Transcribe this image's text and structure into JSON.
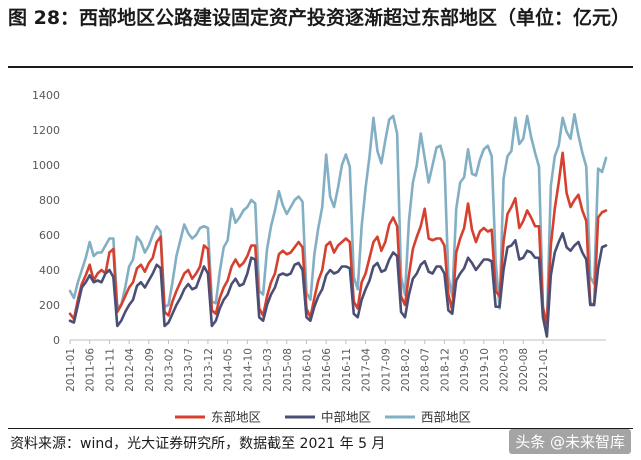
{
  "figure": {
    "title": "图 28：西部地区公路建设固定资产投资逐渐超过东部地区（单位：亿元）",
    "source": "资料来源：wind，光大证券研究所，数据截至 2021 年 5 月",
    "watermark": "头条 @未来智库"
  },
  "chart_data": {
    "type": "line",
    "title": "",
    "xlabel": "",
    "ylabel": "",
    "ylim": [
      0,
      1400
    ],
    "yticks": [
      0,
      200,
      400,
      600,
      800,
      1000,
      1200,
      1400
    ],
    "grid": false,
    "legend_position": "bottom",
    "x_start": "2011-01",
    "x_end": "2021-05",
    "x_tick_labels": [
      "2011-01",
      "2011-06",
      "2011-11",
      "2012-04",
      "2012-09",
      "2013-02",
      "2013-07",
      "2013-12",
      "2014-05",
      "2014-10",
      "2015-03",
      "2015-08",
      "2016-01",
      "2016-06",
      "2016-11",
      "2017-04",
      "2017-09",
      "2018-02",
      "2018-07",
      "2018-12",
      "2019-05",
      "2019-10",
      "2020-03",
      "2020-08",
      "2021-01"
    ],
    "series": [
      {
        "name": "东部地区",
        "color": "#d6402f",
        "values": [
          150,
          120,
          230,
          320,
          370,
          430,
          340,
          380,
          400,
          380,
          500,
          520,
          160,
          200,
          250,
          300,
          330,
          410,
          430,
          390,
          440,
          470,
          560,
          590,
          160,
          140,
          220,
          280,
          330,
          380,
          400,
          350,
          380,
          420,
          540,
          520,
          170,
          150,
          240,
          300,
          340,
          420,
          460,
          420,
          440,
          480,
          540,
          540,
          180,
          140,
          250,
          330,
          380,
          490,
          510,
          490,
          500,
          530,
          560,
          530,
          180,
          130,
          240,
          340,
          400,
          540,
          560,
          500,
          540,
          560,
          580,
          560,
          220,
          180,
          330,
          380,
          470,
          560,
          590,
          510,
          560,
          660,
          700,
          650,
          250,
          200,
          370,
          520,
          590,
          650,
          750,
          580,
          570,
          580,
          580,
          540,
          260,
          170,
          500,
          580,
          640,
          780,
          630,
          560,
          620,
          640,
          620,
          630,
          280,
          250,
          560,
          720,
          760,
          810,
          640,
          680,
          740,
          700,
          650,
          650,
          180,
          90,
          540,
          750,
          900,
          1070,
          840,
          760,
          800,
          830,
          740,
          680,
          210,
          200,
          700,
          730,
          740
        ]
      },
      {
        "name": "中部地区",
        "color": "#4b4f76",
        "values": [
          110,
          100,
          200,
          300,
          330,
          370,
          330,
          340,
          330,
          380,
          400,
          360,
          80,
          110,
          160,
          200,
          230,
          310,
          330,
          300,
          340,
          380,
          430,
          410,
          80,
          100,
          150,
          200,
          240,
          290,
          320,
          290,
          300,
          360,
          420,
          380,
          80,
          110,
          180,
          230,
          260,
          320,
          350,
          310,
          320,
          380,
          470,
          460,
          130,
          110,
          200,
          260,
          300,
          370,
          380,
          370,
          380,
          430,
          440,
          400,
          130,
          110,
          190,
          250,
          290,
          370,
          400,
          380,
          390,
          420,
          420,
          410,
          150,
          130,
          230,
          290,
          340,
          420,
          440,
          390,
          400,
          460,
          500,
          480,
          160,
          130,
          260,
          350,
          380,
          430,
          450,
          390,
          380,
          420,
          420,
          380,
          170,
          150,
          340,
          380,
          410,
          470,
          440,
          400,
          430,
          460,
          460,
          450,
          190,
          190,
          400,
          530,
          540,
          570,
          460,
          470,
          510,
          500,
          470,
          470,
          130,
          20,
          370,
          500,
          560,
          610,
          530,
          510,
          540,
          560,
          500,
          460,
          200,
          200,
          410,
          530,
          540
        ]
      },
      {
        "name": "西部地区",
        "color": "#82afc4",
        "values": [
          280,
          240,
          330,
          400,
          470,
          560,
          480,
          500,
          500,
          540,
          580,
          580,
          190,
          200,
          300,
          420,
          460,
          590,
          560,
          500,
          540,
          600,
          650,
          620,
          190,
          200,
          330,
          480,
          570,
          660,
          610,
          580,
          600,
          640,
          650,
          640,
          220,
          210,
          390,
          530,
          570,
          750,
          670,
          700,
          740,
          760,
          800,
          780,
          280,
          260,
          520,
          650,
          740,
          850,
          770,
          720,
          760,
          800,
          820,
          790,
          270,
          230,
          490,
          640,
          760,
          1060,
          820,
          760,
          870,
          1000,
          1060,
          990,
          360,
          290,
          650,
          870,
          1050,
          1270,
          1080,
          1010,
          1140,
          1260,
          1280,
          1180,
          360,
          260,
          680,
          900,
          1000,
          1180,
          1040,
          900,
          1000,
          1100,
          1110,
          1020,
          360,
          250,
          750,
          900,
          930,
          1090,
          950,
          940,
          1030,
          1090,
          1110,
          1050,
          450,
          180,
          920,
          1050,
          1080,
          1270,
          1120,
          1150,
          1280,
          1160,
          1070,
          990,
          190,
          90,
          880,
          1050,
          1110,
          1270,
          1190,
          1150,
          1290,
          1170,
          1070,
          990,
          360,
          320,
          980,
          960,
          1040
        ]
      }
    ]
  }
}
